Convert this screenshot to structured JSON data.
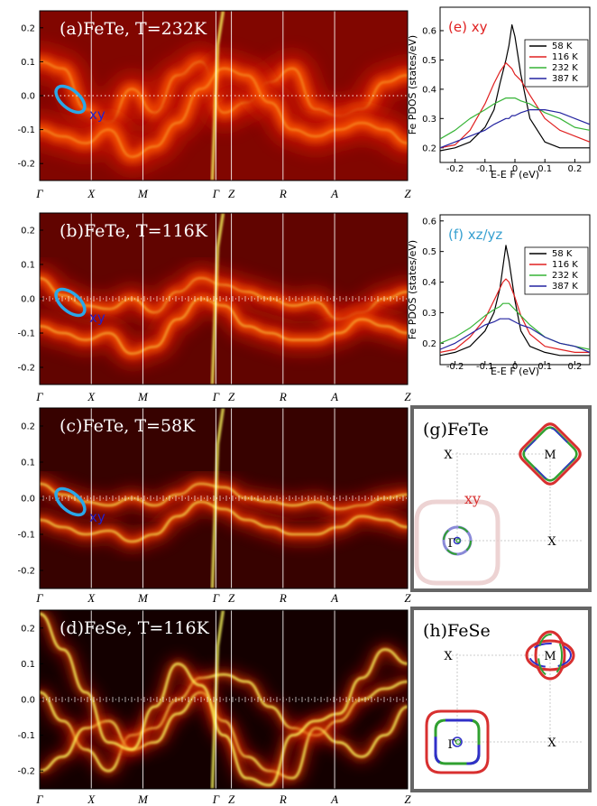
{
  "colors": {
    "spectral_hot": "#ffff60",
    "spectral_cold": "#000000",
    "xy_marker": "#2aa7e8",
    "xy_text": "#2222cc",
    "fermi_line": "#ffffff",
    "pdos_58K": "#000000",
    "pdos_116K": "#e02020",
    "pdos_232K": "#36b436",
    "pdos_387K": "#2424a0",
    "fs_red": "#d83030",
    "fs_blue": "#3030c8",
    "fs_green": "#30a030"
  },
  "chart_data": [
    {
      "type": "heatmap",
      "panel": "a",
      "title": "(a)FeTe, T=232K",
      "annotation": "xy",
      "path_labels": [
        "Γ",
        "X",
        "M",
        "Γ",
        "Z",
        "R",
        "A",
        "Z"
      ],
      "path_positions": [
        0,
        0.5,
        1.0,
        1.707,
        1.857,
        2.357,
        2.857,
        3.564
      ],
      "ylim": [
        -0.25,
        0.25
      ],
      "yticks": [
        "0.2",
        "0.1",
        "0.0",
        "-0.1",
        "-0.2"
      ],
      "ytick_values": [
        0.2,
        0.1,
        0.0,
        -0.1,
        -0.2
      ],
      "bands": [
        [
          0.1,
          0.08,
          -0.04,
          -0.08,
          0.02,
          -0.05,
          0.06,
          0.1,
          -0.05,
          -0.02,
          0.04,
          0.08,
          -0.04,
          -0.06,
          -0.04,
          0.04,
          0.06
        ],
        [
          -0.1,
          -0.12,
          -0.14,
          -0.1,
          -0.18,
          -0.15,
          -0.08,
          0.02,
          0.08,
          0.06,
          -0.02,
          -0.1,
          -0.12,
          -0.1,
          -0.08,
          -0.1,
          -0.14
        ]
      ],
      "coherence": 0.22
    },
    {
      "type": "heatmap",
      "panel": "b",
      "title": "(b)FeTe, T=116K",
      "annotation": "xy",
      "path_labels": [
        "Γ",
        "X",
        "M",
        "Γ",
        "Z",
        "R",
        "A",
        "Z"
      ],
      "path_positions": [
        0,
        0.5,
        1.0,
        1.707,
        1.857,
        2.357,
        2.857,
        3.564
      ],
      "ylim": [
        -0.25,
        0.25
      ],
      "yticks": [
        "0.2",
        "0.1",
        "0.0",
        "-0.1",
        "-0.2"
      ],
      "ytick_values": [
        0.2,
        0.1,
        0.0,
        -0.1,
        -0.2
      ],
      "bands": [
        [
          0.06,
          0.01,
          -0.02,
          -0.03,
          0.0,
          -0.04,
          0.02,
          0.06,
          0.04,
          0.02,
          0.0,
          -0.02,
          -0.01,
          -0.06,
          -0.04,
          0.0,
          0.02
        ],
        [
          -0.08,
          -0.1,
          -0.12,
          -0.1,
          -0.16,
          -0.14,
          -0.06,
          0.0,
          -0.02,
          -0.08,
          -0.1,
          -0.12,
          -0.12,
          -0.1,
          -0.06,
          -0.08,
          -0.1
        ]
      ],
      "coherence": 0.45
    },
    {
      "type": "heatmap",
      "panel": "c",
      "title": "(c)FeTe, T=58K",
      "annotation": "xy",
      "path_labels": [
        "Γ",
        "X",
        "M",
        "Γ",
        "Z",
        "R",
        "A",
        "Z"
      ],
      "path_positions": [
        0,
        0.5,
        1.0,
        1.707,
        1.857,
        2.357,
        2.857,
        3.564
      ],
      "ylim": [
        -0.25,
        0.25
      ],
      "yticks": [
        "0.2",
        "0.1",
        "0.0",
        "-0.1",
        "-0.2"
      ],
      "ytick_values": [
        0.2,
        0.1,
        0.0,
        -0.1,
        -0.2
      ],
      "bands": [
        [
          0.04,
          0.01,
          -0.01,
          -0.02,
          0.0,
          -0.02,
          0.01,
          0.04,
          0.03,
          0.0,
          -0.01,
          -0.02,
          -0.01,
          -0.03,
          -0.02,
          0.0,
          0.01
        ],
        [
          -0.06,
          -0.08,
          -0.1,
          -0.09,
          -0.12,
          -0.1,
          -0.05,
          -0.01,
          -0.03,
          -0.06,
          -0.08,
          -0.1,
          -0.1,
          -0.08,
          -0.05,
          -0.06,
          -0.08
        ]
      ],
      "coherence": 0.75
    },
    {
      "type": "heatmap",
      "panel": "d",
      "title": "(d)FeSe, T=116K",
      "path_labels": [
        "Γ",
        "X",
        "M",
        "Γ",
        "Z",
        "R",
        "A",
        "Z"
      ],
      "path_positions": [
        0,
        0.5,
        1.0,
        1.707,
        1.857,
        2.357,
        2.857,
        3.564
      ],
      "ylim": [
        -0.25,
        0.25
      ],
      "yticks": [
        "0.2",
        "0.1",
        "0.0",
        "-0.1",
        "-0.2"
      ],
      "ytick_values": [
        0.2,
        0.1,
        0.0,
        -0.1,
        -0.2
      ],
      "bands": [
        [
          0.02,
          -0.06,
          -0.14,
          -0.2,
          -0.1,
          -0.08,
          0.0,
          0.06,
          0.07,
          0.05,
          -0.02,
          -0.08,
          -0.1,
          -0.06,
          0.0,
          0.03,
          0.05
        ],
        [
          -0.2,
          -0.16,
          -0.08,
          -0.06,
          -0.14,
          -0.12,
          -0.04,
          0.02,
          -0.06,
          -0.16,
          -0.2,
          -0.22,
          -0.08,
          -0.12,
          -0.16,
          -0.1,
          -0.02
        ],
        [
          0.24,
          0.14,
          0.02,
          -0.12,
          -0.14,
          -0.02,
          0.1,
          0.04,
          -0.1,
          -0.22,
          -0.24,
          -0.1,
          -0.06,
          -0.04,
          0.06,
          0.14,
          0.1
        ]
      ],
      "coherence": 1.0
    },
    {
      "type": "line",
      "panel": "e",
      "title": "(e) xy",
      "xlabel": "E-E F (eV)",
      "ylabel": "Fe PDOS (states/eV)",
      "xlim": [
        -0.25,
        0.25
      ],
      "ylim": [
        0.15,
        0.68
      ],
      "xticks": [
        -0.2,
        -0.1,
        0,
        0.1,
        0.2
      ],
      "xtick_labels": [
        "-0.2",
        "-0.1",
        "0",
        "0.1",
        "0.2"
      ],
      "yticks": [
        0.2,
        0.3,
        0.4,
        0.5,
        0.6
      ],
      "ytick_labels": [
        "0.2",
        "0.3",
        "0.4",
        "0.5",
        "0.6"
      ],
      "legend_position": "top-right",
      "x": [
        -0.25,
        -0.2,
        -0.15,
        -0.1,
        -0.07,
        -0.05,
        -0.03,
        -0.02,
        -0.01,
        0.0,
        0.02,
        0.05,
        0.1,
        0.15,
        0.2,
        0.25
      ],
      "series": [
        {
          "name": "58 K",
          "color": "#000000",
          "values": [
            0.19,
            0.2,
            0.22,
            0.27,
            0.33,
            0.42,
            0.5,
            0.55,
            0.62,
            0.58,
            0.45,
            0.3,
            0.22,
            0.2,
            0.2,
            0.2
          ]
        },
        {
          "name": "116 K",
          "color": "#e02020",
          "values": [
            0.2,
            0.21,
            0.26,
            0.35,
            0.42,
            0.46,
            0.49,
            0.48,
            0.47,
            0.45,
            0.43,
            0.38,
            0.3,
            0.26,
            0.24,
            0.22
          ]
        },
        {
          "name": "232 K",
          "color": "#36b436",
          "values": [
            0.23,
            0.26,
            0.3,
            0.33,
            0.35,
            0.36,
            0.37,
            0.37,
            0.37,
            0.37,
            0.36,
            0.35,
            0.32,
            0.3,
            0.27,
            0.26
          ]
        },
        {
          "name": "387 K",
          "color": "#2424a0",
          "values": [
            0.2,
            0.22,
            0.24,
            0.26,
            0.28,
            0.29,
            0.3,
            0.3,
            0.31,
            0.31,
            0.32,
            0.33,
            0.33,
            0.32,
            0.3,
            0.28
          ]
        }
      ]
    },
    {
      "type": "line",
      "panel": "f",
      "title": "(f) xz/yz",
      "xlabel": "E-E F (eV)",
      "ylabel": "Fe PDOS (states/eV)",
      "xlim": [
        -0.25,
        0.25
      ],
      "ylim": [
        0.13,
        0.62
      ],
      "xticks": [
        -0.2,
        -0.1,
        0,
        0.1,
        0.2
      ],
      "xtick_labels": [
        "-0.2",
        "-0.1",
        "0",
        "0.1",
        "0.2"
      ],
      "yticks": [
        0.2,
        0.3,
        0.4,
        0.5,
        0.6
      ],
      "ytick_labels": [
        "0.2",
        "0.3",
        "0.4",
        "0.5",
        "0.6"
      ],
      "legend_position": "top-right",
      "x": [
        -0.25,
        -0.2,
        -0.15,
        -0.1,
        -0.07,
        -0.05,
        -0.04,
        -0.03,
        -0.02,
        0.0,
        0.02,
        0.05,
        0.1,
        0.15,
        0.2,
        0.25
      ],
      "series": [
        {
          "name": "58 K",
          "color": "#000000",
          "values": [
            0.16,
            0.17,
            0.19,
            0.24,
            0.3,
            0.38,
            0.45,
            0.52,
            0.47,
            0.34,
            0.24,
            0.19,
            0.17,
            0.16,
            0.16,
            0.16
          ]
        },
        {
          "name": "116 K",
          "color": "#e02020",
          "values": [
            0.17,
            0.18,
            0.22,
            0.28,
            0.34,
            0.38,
            0.4,
            0.41,
            0.4,
            0.35,
            0.29,
            0.23,
            0.19,
            0.18,
            0.17,
            0.17
          ]
        },
        {
          "name": "232 K",
          "color": "#36b436",
          "values": [
            0.2,
            0.22,
            0.25,
            0.29,
            0.31,
            0.32,
            0.33,
            0.33,
            0.33,
            0.31,
            0.29,
            0.26,
            0.22,
            0.2,
            0.19,
            0.18
          ]
        },
        {
          "name": "387 K",
          "color": "#2424a0",
          "values": [
            0.18,
            0.2,
            0.23,
            0.26,
            0.27,
            0.28,
            0.28,
            0.28,
            0.28,
            0.27,
            0.26,
            0.25,
            0.22,
            0.2,
            0.19,
            0.17
          ]
        }
      ]
    },
    {
      "type": "diagram",
      "panel": "g",
      "title": "(g)FeTe",
      "annotation": "xy",
      "points": [
        "X",
        "M",
        "Γ",
        "X"
      ]
    },
    {
      "type": "diagram",
      "panel": "h",
      "title": "(h)FeSe",
      "points": [
        "X",
        "M",
        "Γ",
        "X"
      ]
    }
  ]
}
